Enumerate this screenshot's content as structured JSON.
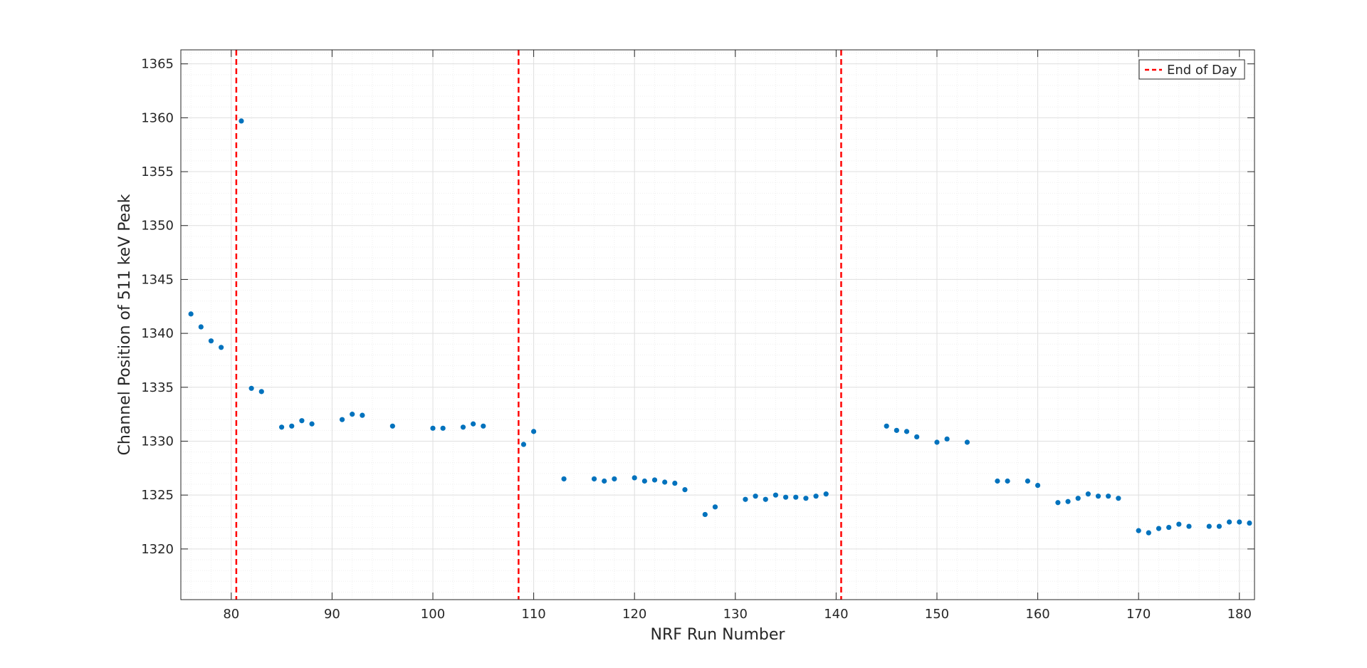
{
  "chart_data": {
    "type": "scatter",
    "title": "",
    "xlabel": "NRF Run Number",
    "ylabel": "Channel Position of 511 keV Peak",
    "xlim": [
      75,
      181.5
    ],
    "ylim": [
      1315.3,
      1366.3
    ],
    "xticks": [
      80,
      90,
      100,
      110,
      120,
      130,
      140,
      150,
      160,
      170,
      180
    ],
    "yticks": [
      1320,
      1325,
      1330,
      1335,
      1340,
      1345,
      1350,
      1355,
      1360,
      1365
    ],
    "grid": true,
    "minor_grid": true,
    "legend_position": "top-right",
    "colors": {
      "points": "#0072BD",
      "end_of_day": "#FF0000",
      "axis": "#262626",
      "major_grid": "#DFDFDF",
      "minor_grid": "#EFEFEF"
    },
    "series": [
      {
        "x": [
          76,
          77,
          78,
          79,
          81,
          82,
          83,
          85,
          86,
          87,
          88,
          91,
          92,
          93,
          96,
          100,
          101,
          103,
          104,
          105,
          109,
          110,
          113,
          116,
          117,
          118,
          120,
          121,
          122,
          123,
          124,
          125,
          127,
          128,
          131,
          132,
          133,
          134,
          135,
          136,
          137,
          138,
          139,
          145,
          146,
          147,
          148,
          150,
          151,
          153,
          156,
          157,
          159,
          160,
          162,
          163,
          164,
          165,
          166,
          167,
          168,
          170,
          171,
          172,
          173,
          174,
          175,
          177,
          178,
          179,
          180,
          181
        ],
        "y": [
          1341.8,
          1340.6,
          1339.3,
          1338.7,
          1359.7,
          1334.9,
          1334.6,
          1331.3,
          1331.4,
          1331.9,
          1331.6,
          1332.0,
          1332.5,
          1332.4,
          1331.4,
          1331.2,
          1331.2,
          1331.3,
          1331.6,
          1331.4,
          1329.7,
          1330.9,
          1326.5,
          1326.5,
          1326.3,
          1326.5,
          1326.6,
          1326.3,
          1326.4,
          1326.2,
          1326.1,
          1325.5,
          1323.2,
          1323.9,
          1324.6,
          1324.9,
          1324.6,
          1325.0,
          1324.8,
          1324.8,
          1324.7,
          1324.9,
          1325.1,
          1331.4,
          1331.0,
          1330.9,
          1330.4,
          1329.9,
          1330.2,
          1329.9,
          1326.3,
          1326.3,
          1326.3,
          1325.9,
          1324.3,
          1324.4,
          1324.7,
          1325.1,
          1324.9,
          1324.9,
          1324.7,
          1321.7,
          1321.5,
          1321.9,
          1322.0,
          1322.3,
          1322.1,
          1322.1,
          1322.1,
          1322.5,
          1322.5,
          1322.4
        ]
      },
      {
        "name": "End of Day",
        "style": "dashed-vertical",
        "x": [
          80.5,
          108.5,
          140.5
        ]
      }
    ]
  }
}
